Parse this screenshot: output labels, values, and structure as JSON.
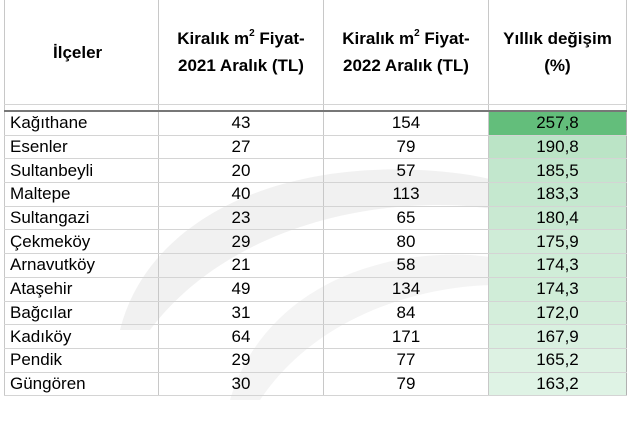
{
  "table": {
    "headers": {
      "district": "İlçeler",
      "rent_2021_line1": "Kiralık m",
      "rent_2021_sup": "2",
      "rent_2021_line1b": " Fiyat-",
      "rent_2021_line2": "2021 Aralık (TL)",
      "rent_2022_line1": "Kiralık m",
      "rent_2022_sup": "2",
      "rent_2022_line1b": " Fiyat-",
      "rent_2022_line2": "2022 Aralık (TL)",
      "change_line1": "Yıllık değişim",
      "change_line2": "(%)"
    },
    "rows": [
      {
        "district": "Kağıthane",
        "rent_2021": "43",
        "rent_2022": "154",
        "change": "257,8",
        "shade": 1.0
      },
      {
        "district": "Esenler",
        "rent_2021": "27",
        "rent_2022": "79",
        "change": "190,8",
        "shade": 0.29
      },
      {
        "district": "Sultanbeyli",
        "rent_2021": "20",
        "rent_2022": "57",
        "change": "185,5",
        "shade": 0.23
      },
      {
        "district": "Maltepe",
        "rent_2021": "40",
        "rent_2022": "113",
        "change": "183,3",
        "shade": 0.21
      },
      {
        "district": "Sultangazi",
        "rent_2021": "23",
        "rent_2022": "65",
        "change": "180,4",
        "shade": 0.18
      },
      {
        "district": "Çekmeköy",
        "rent_2021": "29",
        "rent_2022": "80",
        "change": "175,9",
        "shade": 0.13
      },
      {
        "district": "Arnavutköy",
        "rent_2021": "21",
        "rent_2022": "58",
        "change": "174,3",
        "shade": 0.12
      },
      {
        "district": "Ataşehir",
        "rent_2021": "49",
        "rent_2022": "134",
        "change": "174,3",
        "shade": 0.12
      },
      {
        "district": "Bağcılar",
        "rent_2021": "31",
        "rent_2022": "84",
        "change": "172,0",
        "shade": 0.09
      },
      {
        "district": "Kadıköy",
        "rent_2021": "64",
        "rent_2022": "171",
        "change": "167,9",
        "shade": 0.05
      },
      {
        "district": "Pendik",
        "rent_2021": "29",
        "rent_2022": "77",
        "change": "165,2",
        "shade": 0.02
      },
      {
        "district": "Güngören",
        "rent_2021": "30",
        "rent_2022": "79",
        "change": "163,2",
        "shade": 0.0
      }
    ]
  },
  "colors": {
    "scale_max": "#63be7b",
    "scale_min": "#dff3e5"
  }
}
